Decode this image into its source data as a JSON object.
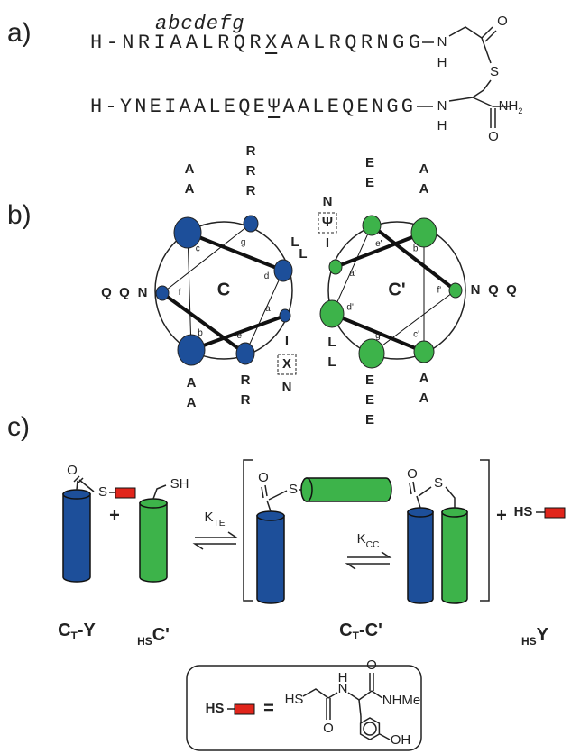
{
  "panel_a": {
    "label": "a)",
    "heptad": "abcdefg",
    "peptide_1": {
      "before": "H-NRIAALRQR",
      "marked": "X",
      "after": "AALRQRNGG"
    },
    "peptide_2": {
      "before": "H-YNEIAALEQE",
      "marked": "Ψ",
      "after": "AALEQENGG"
    },
    "atoms_1": [
      "N",
      "H",
      "O",
      "S"
    ],
    "atoms_2": [
      "N",
      "H",
      "O"
    ],
    "amide": {
      "main": "NH",
      "sub": "2"
    }
  },
  "panel_b": {
    "label": "b)",
    "helices": [
      {
        "name": "C",
        "positions": [
          "a",
          "b",
          "c",
          "d",
          "e",
          "f",
          "g"
        ],
        "residues": [
          [
            "I",
            "X",
            "N"
          ],
          [
            "A",
            "A"
          ],
          [
            "A",
            "A"
          ],
          [
            "L",
            "L"
          ],
          [
            "R",
            "R"
          ],
          [
            "N",
            "Q",
            "Q"
          ],
          [
            "R",
            "R",
            "R"
          ]
        ]
      },
      {
        "name": "C'",
        "positions": [
          "a'",
          "b'",
          "c'",
          "d'",
          "e'",
          "f'",
          "g'"
        ],
        "residues": [
          [
            "I",
            "Ψ",
            "N"
          ],
          [
            "A",
            "A"
          ],
          [
            "A",
            "A"
          ],
          [
            "L",
            "L"
          ],
          [
            "E",
            "E"
          ],
          [
            "N",
            "Q",
            "Q"
          ],
          [
            "E",
            "E",
            "E"
          ]
        ]
      }
    ]
  },
  "panel_c": {
    "label": "c)",
    "plus_signs": [
      "+",
      "+"
    ],
    "k_te": {
      "main": "K",
      "sub": "TE"
    },
    "k_cc": {
      "main": "K",
      "sub": "CC"
    },
    "atoms": [
      "O",
      "S",
      "SH",
      "O",
      "S",
      "O",
      "S",
      "HS"
    ],
    "species": [
      {
        "main": "C",
        "sub": "T",
        "suffix": "-Y"
      },
      {
        "pre": "HS",
        "main": "C'"
      },
      {
        "main": "C",
        "sub": "T",
        "suffix": "-C'"
      },
      {
        "pre": "HS",
        "main": "Y"
      }
    ],
    "legend": {
      "lhs": "HS",
      "equals": "=",
      "atoms": [
        "HS",
        "H",
        "N",
        "O",
        "O",
        "NHMe",
        "OH"
      ]
    }
  }
}
